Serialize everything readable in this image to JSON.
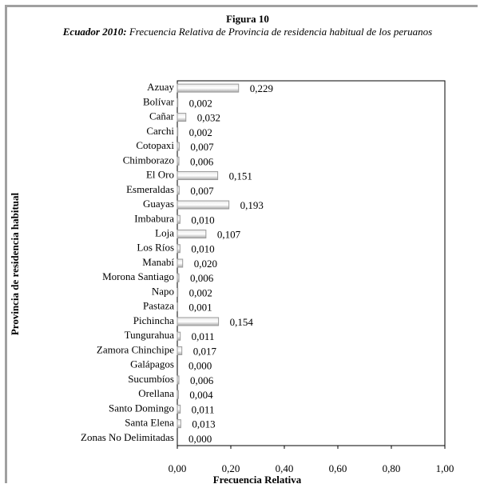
{
  "chart_data": {
    "type": "hbar",
    "title": "Figura 10",
    "subtitle_prefix": "Ecuador 2010:",
    "subtitle": "Frecuencia Relativa de Provincia de residencia habitual de los peruanos",
    "x_label": "Frecuencia Relativa",
    "y_label": "Provincia de residencia habitual",
    "categories": [
      "Azuay",
      "Bolívar",
      "Cañar",
      "Carchi",
      "Cotopaxi",
      "Chimborazo",
      "El Oro",
      "Esmeraldas",
      "Guayas",
      "Imbabura",
      "Loja",
      "Los Ríos",
      "Manabí",
      "Morona Santiago",
      "Napo",
      "Pastaza",
      "Pichincha",
      "Tungurahua",
      "Zamora Chinchipe",
      "Galápagos",
      "Sucumbíos",
      "Orellana",
      "Santo Domingo",
      "Santa Elena",
      "Zonas No Delimitadas"
    ],
    "values": [
      0.229,
      0.002,
      0.032,
      0.002,
      0.007,
      0.006,
      0.151,
      0.007,
      0.193,
      0.01,
      0.107,
      0.01,
      0.02,
      0.006,
      0.002,
      0.001,
      0.154,
      0.011,
      0.017,
      0.0,
      0.006,
      0.004,
      0.011,
      0.013,
      0.0
    ],
    "value_labels": [
      "0,229",
      "0,002",
      "0,032",
      "0,002",
      "0,007",
      "0,006",
      "0,151",
      "0,007",
      "0,193",
      "0,010",
      "0,107",
      "0,010",
      "0,020",
      "0,006",
      "0,002",
      "0,001",
      "0,154",
      "0,011",
      "0,017",
      "0,000",
      "0,006",
      "0,004",
      "0,011",
      "0,013",
      "0,000"
    ],
    "color": "#b8b8b8",
    "xlim": [
      0,
      1
    ],
    "xticks": [
      {
        "value": 0,
        "label": "0,00"
      },
      {
        "value": 0.2,
        "label": "0,20"
      },
      {
        "value": 0.4,
        "label": "0,40"
      },
      {
        "value": 0.6,
        "label": "0,60"
      },
      {
        "value": 0.8,
        "label": "0,80"
      },
      {
        "value": 1,
        "label": "1,00"
      }
    ],
    "grid": false
  }
}
